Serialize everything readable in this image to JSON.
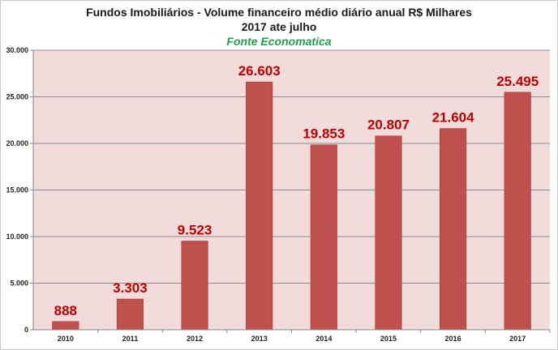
{
  "chart_data": {
    "type": "bar",
    "title": "Fundos Imobiliários - Volume financeiro médio diário anual R$ Milhares",
    "subtitle": "2017 ate julho",
    "source": "Fonte Economatica",
    "categories": [
      "2010",
      "2011",
      "2012",
      "2013",
      "2014",
      "2015",
      "2016",
      "2017"
    ],
    "values": [
      888,
      3303,
      9523,
      26603,
      19853,
      20807,
      21604,
      25495
    ],
    "value_labels": [
      "888",
      "3.303",
      "9.523",
      "26.603",
      "19.853",
      "20.807",
      "21.604",
      "25.495"
    ],
    "ylim": [
      0,
      30000
    ],
    "yticks": [
      0,
      5000,
      10000,
      15000,
      20000,
      25000,
      30000
    ],
    "ytick_labels": [
      "0",
      "5.000",
      "10.000",
      "15.000",
      "20.000",
      "25.000",
      "30.000"
    ],
    "grid": true,
    "legend": "none",
    "colors": {
      "bar": "#c0504d",
      "plot_background": "#f2dcdb",
      "gridline": "#8c8c8c",
      "data_label": "#c00000",
      "source_text": "#1fa34a"
    }
  }
}
